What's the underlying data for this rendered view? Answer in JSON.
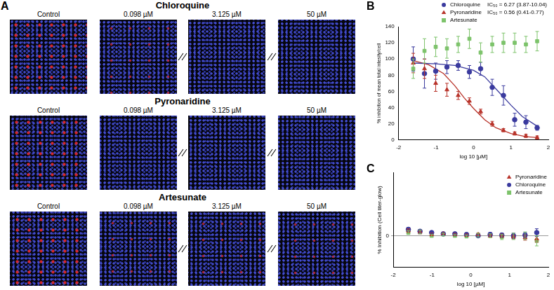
{
  "panel_a": {
    "label": "A",
    "rows": [
      {
        "title": "Chloroquine",
        "columns": [
          "Control",
          "0.098 µM",
          "3.125 µM",
          "50 µM"
        ]
      },
      {
        "title": "Pyronaridine",
        "columns": [
          "Control",
          "0.098 µM",
          "3.125 µM",
          "50 µM"
        ]
      },
      {
        "title": "Artesunate",
        "columns": [
          "Control",
          "0.098 µM",
          "3.125 µM",
          "50 µM"
        ]
      }
    ]
  },
  "chart_data": [
    {
      "label": "B",
      "type": "scatter",
      "x_label": "log 10 [µM]",
      "y_label": "% inhibition of mean total intesity/cell",
      "x": [
        -1.61,
        -1.31,
        -1.01,
        -0.71,
        -0.41,
        -0.11,
        0.19,
        0.5,
        0.8,
        1.1,
        1.4,
        1.7
      ],
      "xlim": [
        -2,
        2
      ],
      "xticks": [
        -2,
        -1,
        0,
        1,
        2
      ],
      "ylim": [
        0,
        140
      ],
      "yticks": [
        0,
        20,
        40,
        60,
        80,
        100,
        120,
        140
      ],
      "grid": false,
      "legend": "upper right",
      "series": [
        {
          "name": "Chloroquine",
          "color": "#3a3a9e",
          "marker": "circle",
          "annotation": "IC₅₀ = 6.27 (3.87-10.04)",
          "values": [
            100,
            82,
            85,
            90,
            92,
            84,
            88,
            65,
            55,
            25,
            22,
            15
          ],
          "errors": [
            15,
            18,
            10,
            8,
            6,
            8,
            8,
            10,
            12,
            8,
            8,
            3
          ],
          "fit": {
            "x": [
              -1.6,
              -1.0,
              -0.5,
              0,
              0.3,
              0.6,
              0.8,
              1.0,
              1.3,
              1.7
            ],
            "values": [
              95,
              94,
              92,
              86,
              78,
              63,
              53,
              43,
              29,
              17
            ]
          }
        },
        {
          "name": "Pyronaridine",
          "color": "#b8332a",
          "marker": "triangle",
          "annotation": "IC₅₀ = 0.56 (0.41-0.77)",
          "values": [
            95,
            88,
            70,
            62,
            55,
            48,
            35,
            20,
            12,
            8,
            5,
            3
          ],
          "errors": [
            12,
            12,
            10,
            8,
            5,
            4,
            3,
            3,
            2,
            2,
            2,
            2
          ],
          "fit": {
            "x": [
              -1.6,
              -1.2,
              -0.8,
              -0.5,
              -0.25,
              0,
              0.3,
              0.6,
              1.0,
              1.4,
              1.7
            ],
            "values": [
              98,
              93,
              82,
              67,
              52,
              39,
              25,
              15,
              8,
              4,
              3
            ]
          }
        },
        {
          "name": "Artesunate",
          "color": "#7dc36b",
          "marker": "square",
          "values": [
            88,
            110,
            115,
            113,
            118,
            125,
            108,
            118,
            120,
            120,
            118,
            122
          ],
          "errors": [
            12,
            15,
            12,
            12,
            10,
            12,
            12,
            10,
            12,
            12,
            10,
            12
          ]
        }
      ]
    },
    {
      "label": "C",
      "type": "scatter",
      "x_label": "log 10 [µM]",
      "y_label": "% Inhibition (Cell titer-glow)",
      "x": [
        -1.61,
        -1.31,
        -1.01,
        -0.71,
        -0.41,
        -0.11,
        0.19,
        0.5,
        0.8,
        1.1,
        1.4,
        1.7
      ],
      "xlim": [
        -2,
        2
      ],
      "xticks": [
        -2,
        -1,
        0,
        1,
        2
      ],
      "ylim": [
        -50,
        100
      ],
      "yticks": [
        0
      ],
      "grid": true,
      "legend": "upper right",
      "series": [
        {
          "name": "Pyronaridine",
          "color": "#b8332a",
          "marker": "triangle",
          "values": [
            8,
            6,
            2,
            3,
            2,
            1,
            2,
            0,
            0,
            -2,
            -3,
            -5
          ],
          "errors": [
            3,
            3,
            2,
            2,
            2,
            2,
            2,
            2,
            3,
            3,
            4,
            5
          ]
        },
        {
          "name": "Chloroquine",
          "color": "#3a3a9e",
          "marker": "circle",
          "values": [
            10,
            7,
            5,
            3,
            3,
            2,
            0,
            2,
            1,
            0,
            1,
            5
          ],
          "errors": [
            3,
            3,
            2,
            2,
            2,
            2,
            2,
            3,
            3,
            4,
            4,
            6
          ]
        },
        {
          "name": "Artesunate",
          "color": "#7dc36b",
          "marker": "square",
          "values": [
            5,
            6,
            0,
            2,
            0,
            -1,
            1,
            0,
            -2,
            -1,
            0,
            -8
          ],
          "errors": [
            3,
            3,
            2,
            2,
            2,
            2,
            3,
            3,
            4,
            5,
            6,
            8
          ]
        }
      ]
    }
  ]
}
